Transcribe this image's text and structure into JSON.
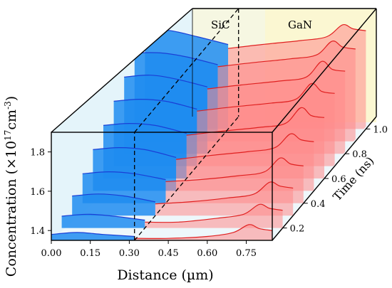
{
  "chart_data": {
    "type": "line",
    "title": "",
    "xlabel": "Distance (µm)",
    "ylabel_main": "Concentration (×10",
    "ylabel_sup": "17",
    "ylabel_unit": "cm",
    "ylabel_unit_sup": "-3",
    "ylabel_close": ")",
    "zlabel": "Time (ns)",
    "xlim": [
      0,
      0.85
    ],
    "ylim": [
      1.35,
      1.9
    ],
    "zlim": [
      0.1,
      1.1
    ],
    "x_ticks": [
      "0.00",
      "0.15",
      "0.30",
      "0.45",
      "0.60",
      "0.75"
    ],
    "y_ticks": [
      "1.4",
      "1.6",
      "1.8"
    ],
    "z_ticks": [
      "0.2",
      "0.4",
      "0.6",
      "0.8",
      "1.0"
    ],
    "interface_x": 0.32,
    "regions": [
      {
        "name": "SiC",
        "color": "#1e8cf0"
      },
      {
        "name": "GaN",
        "color": "#ff8a8a"
      }
    ],
    "series": [
      {
        "t": 1.0,
        "sic": [
          [
            0.0,
            1.86
          ],
          [
            0.1,
            1.85
          ],
          [
            0.2,
            1.82
          ],
          [
            0.32,
            1.78
          ]
        ],
        "gan": [
          [
            0.32,
            1.76
          ],
          [
            0.45,
            1.78
          ],
          [
            0.6,
            1.8
          ],
          [
            0.7,
            1.82
          ],
          [
            0.76,
            1.88
          ],
          [
            0.8,
            1.86
          ],
          [
            0.85,
            1.85
          ]
        ]
      },
      {
        "t": 0.9,
        "sic": [
          [
            0.0,
            1.8
          ],
          [
            0.1,
            1.8
          ],
          [
            0.2,
            1.78
          ],
          [
            0.32,
            1.74
          ]
        ],
        "gan": [
          [
            0.32,
            1.73
          ],
          [
            0.45,
            1.75
          ],
          [
            0.6,
            1.77
          ],
          [
            0.7,
            1.79
          ],
          [
            0.76,
            1.86
          ],
          [
            0.8,
            1.83
          ],
          [
            0.85,
            1.82
          ]
        ]
      },
      {
        "t": 0.8,
        "sic": [
          [
            0.0,
            1.74
          ],
          [
            0.1,
            1.75
          ],
          [
            0.2,
            1.73
          ],
          [
            0.32,
            1.69
          ]
        ],
        "gan": [
          [
            0.32,
            1.68
          ],
          [
            0.45,
            1.7
          ],
          [
            0.6,
            1.72
          ],
          [
            0.7,
            1.74
          ],
          [
            0.76,
            1.82
          ],
          [
            0.8,
            1.78
          ],
          [
            0.85,
            1.77
          ]
        ]
      },
      {
        "t": 0.7,
        "sic": [
          [
            0.0,
            1.68
          ],
          [
            0.1,
            1.69
          ],
          [
            0.2,
            1.68
          ],
          [
            0.32,
            1.64
          ]
        ],
        "gan": [
          [
            0.32,
            1.63
          ],
          [
            0.45,
            1.65
          ],
          [
            0.6,
            1.67
          ],
          [
            0.7,
            1.69
          ],
          [
            0.76,
            1.77
          ],
          [
            0.8,
            1.73
          ],
          [
            0.85,
            1.72
          ]
        ]
      },
      {
        "t": 0.6,
        "sic": [
          [
            0.0,
            1.62
          ],
          [
            0.1,
            1.63
          ],
          [
            0.2,
            1.62
          ],
          [
            0.32,
            1.58
          ]
        ],
        "gan": [
          [
            0.32,
            1.57
          ],
          [
            0.45,
            1.59
          ],
          [
            0.6,
            1.61
          ],
          [
            0.7,
            1.63
          ],
          [
            0.76,
            1.71
          ],
          [
            0.8,
            1.67
          ],
          [
            0.85,
            1.66
          ]
        ]
      },
      {
        "t": 0.5,
        "sic": [
          [
            0.0,
            1.56
          ],
          [
            0.1,
            1.57
          ],
          [
            0.2,
            1.56
          ],
          [
            0.32,
            1.52
          ]
        ],
        "gan": [
          [
            0.32,
            1.51
          ],
          [
            0.45,
            1.53
          ],
          [
            0.6,
            1.55
          ],
          [
            0.7,
            1.57
          ],
          [
            0.76,
            1.64
          ],
          [
            0.8,
            1.61
          ],
          [
            0.85,
            1.6
          ]
        ]
      },
      {
        "t": 0.4,
        "sic": [
          [
            0.0,
            1.5
          ],
          [
            0.1,
            1.51
          ],
          [
            0.2,
            1.5
          ],
          [
            0.32,
            1.47
          ]
        ],
        "gan": [
          [
            0.32,
            1.46
          ],
          [
            0.45,
            1.47
          ],
          [
            0.6,
            1.49
          ],
          [
            0.7,
            1.51
          ],
          [
            0.76,
            1.58
          ],
          [
            0.8,
            1.55
          ],
          [
            0.85,
            1.54
          ]
        ]
      },
      {
        "t": 0.3,
        "sic": [
          [
            0.0,
            1.45
          ],
          [
            0.1,
            1.46
          ],
          [
            0.2,
            1.45
          ],
          [
            0.32,
            1.42
          ]
        ],
        "gan": [
          [
            0.32,
            1.41
          ],
          [
            0.45,
            1.42
          ],
          [
            0.6,
            1.44
          ],
          [
            0.7,
            1.46
          ],
          [
            0.76,
            1.52
          ],
          [
            0.8,
            1.5
          ],
          [
            0.85,
            1.49
          ]
        ]
      },
      {
        "t": 0.2,
        "sic": [
          [
            0.0,
            1.41
          ],
          [
            0.1,
            1.42
          ],
          [
            0.2,
            1.41
          ],
          [
            0.32,
            1.39
          ]
        ],
        "gan": [
          [
            0.32,
            1.38
          ],
          [
            0.45,
            1.38
          ],
          [
            0.6,
            1.4
          ],
          [
            0.7,
            1.42
          ],
          [
            0.76,
            1.47
          ],
          [
            0.8,
            1.45
          ],
          [
            0.85,
            1.44
          ]
        ]
      },
      {
        "t": 0.1,
        "sic": [
          [
            0.0,
            1.38
          ],
          [
            0.1,
            1.39
          ],
          [
            0.2,
            1.38
          ],
          [
            0.32,
            1.37
          ]
        ],
        "gan": [
          [
            0.32,
            1.36
          ],
          [
            0.45,
            1.36
          ],
          [
            0.6,
            1.37
          ],
          [
            0.7,
            1.39
          ],
          [
            0.76,
            1.43
          ],
          [
            0.8,
            1.41
          ],
          [
            0.85,
            1.4
          ]
        ]
      }
    ]
  }
}
